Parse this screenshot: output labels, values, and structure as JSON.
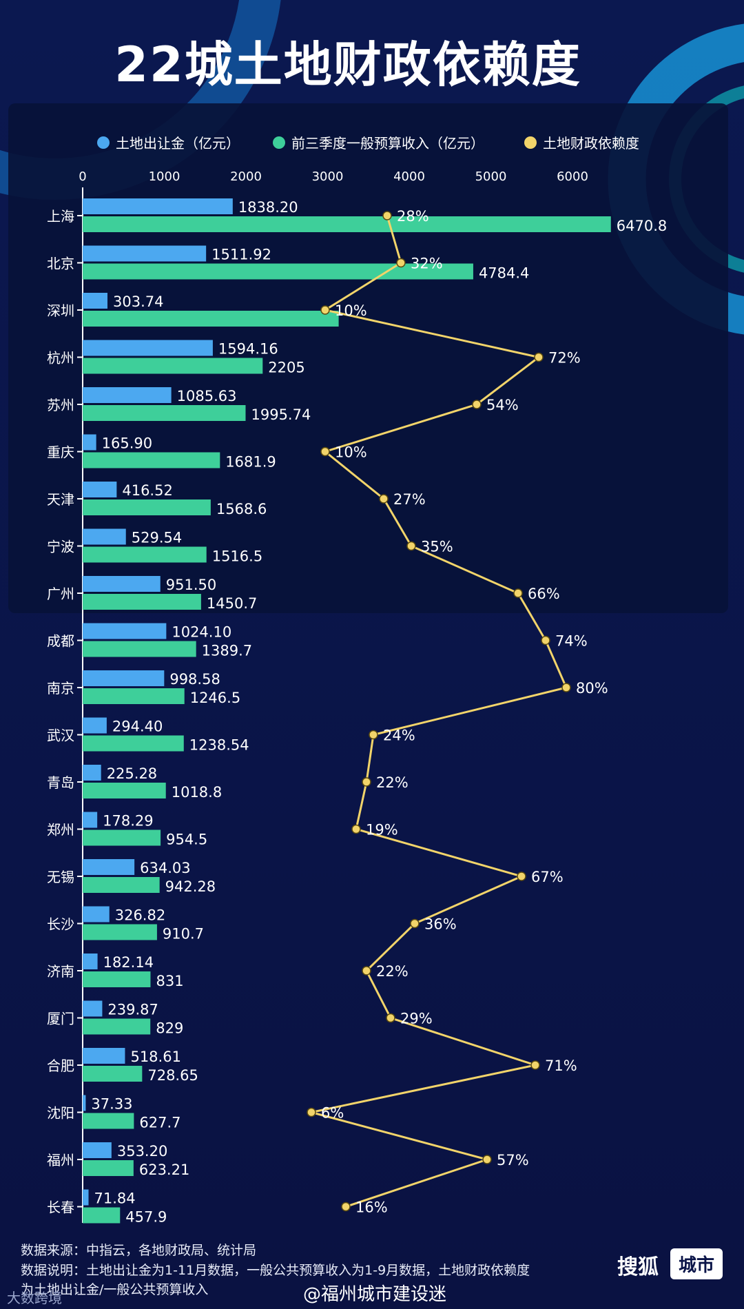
{
  "title": "22城土地财政依赖度",
  "colors": {
    "land": "#4ca8f0",
    "budget": "#3ecf9a",
    "ratio": "#f2d46a",
    "text": "#ffffff",
    "axis": "#ffffff"
  },
  "chart_data": {
    "type": "bar",
    "orientation": "horizontal",
    "legend_position": "top",
    "categories": [
      "上海",
      "北京",
      "深圳",
      "杭州",
      "苏州",
      "重庆",
      "天津",
      "宁波",
      "广州",
      "成都",
      "南京",
      "武汉",
      "青岛",
      "郑州",
      "无锡",
      "长沙",
      "济南",
      "厦门",
      "合肥",
      "沈阳",
      "福州",
      "长春"
    ],
    "x_ticks": [
      "0",
      "1000",
      "2000",
      "3000",
      "4000",
      "5000",
      "6000"
    ],
    "xlim": [
      0,
      6500
    ],
    "series": [
      {
        "name": "土地出让金（亿元）",
        "values": [
          1838.2,
          1511.92,
          303.74,
          1594.16,
          1085.63,
          165.9,
          416.52,
          529.54,
          951.5,
          1024.1,
          998.58,
          294.4,
          225.28,
          178.29,
          634.03,
          326.82,
          182.14,
          239.87,
          518.61,
          37.33,
          353.2,
          71.84
        ],
        "labels": [
          "1838.20",
          "1511.92",
          "303.74",
          "1594.16",
          "1085.63",
          "165.90",
          "416.52",
          "529.54",
          "951.50",
          "1024.10",
          "998.58",
          "294.40",
          "225.28",
          "178.29",
          "634.03",
          "326.82",
          "182.14",
          "239.87",
          "518.61",
          "37.33",
          "353.20",
          "71.84"
        ]
      },
      {
        "name": "前三季度一般预算收入（亿元）",
        "values": [
          6470.8,
          4784.4,
          3136.0,
          2205,
          1995.74,
          1681.9,
          1568.6,
          1516.5,
          1450.7,
          1389.7,
          1246.5,
          1238.54,
          1018.8,
          954.5,
          942.28,
          910.7,
          831,
          829,
          728.65,
          627.7,
          623.21,
          457.9
        ],
        "labels": [
          "6470.8",
          "4784.4",
          "",
          "2205",
          "1995.74",
          "1681.9",
          "1568.6",
          "1516.5",
          "1450.7",
          "1389.7",
          "1246.5",
          "1238.54",
          "1018.8",
          "954.5",
          "942.28",
          "910.7",
          "831",
          "829",
          "728.65",
          "627.7",
          "623.21",
          "457.9"
        ]
      },
      {
        "name": "土地财政依赖度",
        "values": [
          28,
          32,
          10,
          72,
          54,
          10,
          27,
          35,
          66,
          74,
          80,
          24,
          22,
          19,
          67,
          36,
          22,
          29,
          71,
          6,
          57,
          16
        ],
        "labels": [
          "28%",
          "32%",
          "10%",
          "72%",
          "54%",
          "10%",
          "27%",
          "35%",
          "66%",
          "74%",
          "80%",
          "24%",
          "22%",
          "19%",
          "67%",
          "36%",
          "22%",
          "29%",
          "71%",
          "6%",
          "57%",
          "16%"
        ]
      }
    ]
  },
  "footer": {
    "source": "数据来源：中指云，各地财政局、统计局",
    "note1": "数据说明：土地出让金为1-11月数据，一般公共预算收入为1-9月数据，土地财政依赖度",
    "note2": "为土地出让金/一般公共预算收入"
  },
  "brand": {
    "name": "搜狐",
    "tag": "城市"
  },
  "watermark": "@福州城市建设迷",
  "watermark_left": "大数跨境"
}
